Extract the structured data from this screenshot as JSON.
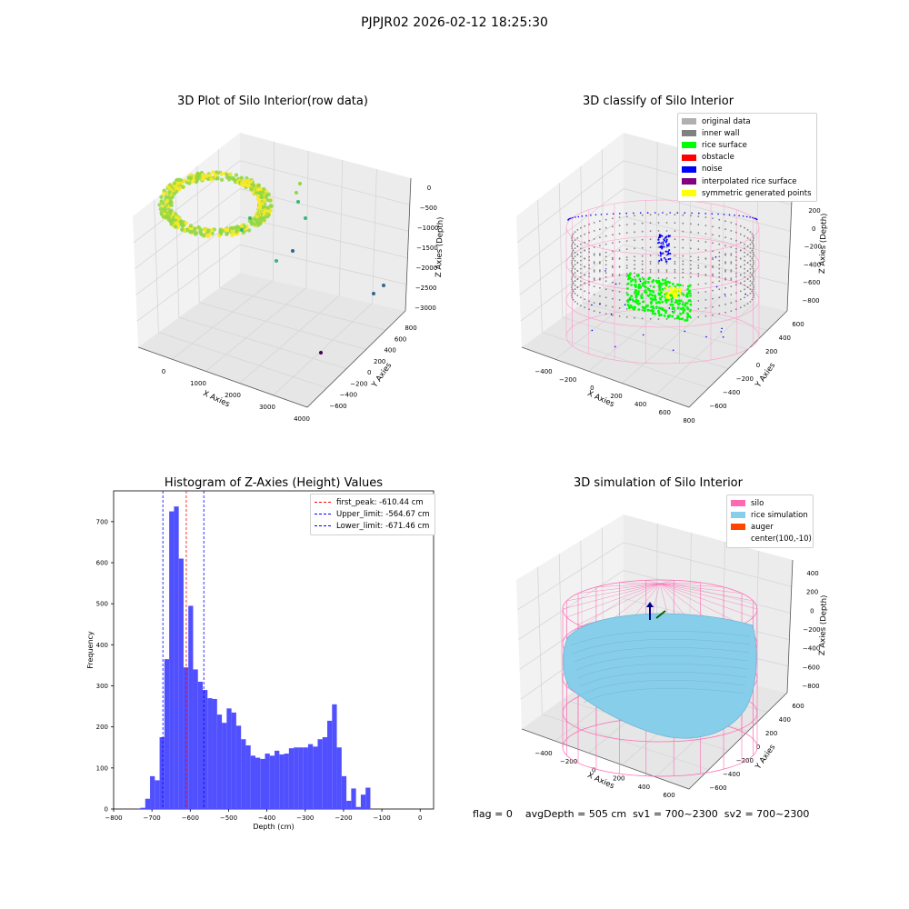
{
  "suptitle": "PJPJR02 2026-02-12 18:25:30",
  "footer": {
    "flag": "flag = 0",
    "avg_depth": "avgDepth = 505 cm",
    "sv1": "sv1 = 700~2300",
    "sv2": "sv2 = 700~2300"
  },
  "panels": {
    "raw": {
      "title": "3D Plot of Silo Interior(row data)",
      "xlabel": "X Axies",
      "ylabel": "Y Axies",
      "zlabel": "Z Axies (Depth)",
      "xticks": [
        "0",
        "1000",
        "2000",
        "3000",
        "4000"
      ],
      "yticks": [
        "800",
        "600",
        "400",
        "200",
        "0",
        "−200",
        "−400",
        "−600"
      ],
      "zticks": [
        "0",
        "−500",
        "−1000",
        "−1500",
        "−2000",
        "−2500",
        "−3000"
      ],
      "colormap": [
        "#440154",
        "#31688e",
        "#35b779",
        "#90d743",
        "#fde725"
      ]
    },
    "classify": {
      "title": "3D classify of Silo Interior",
      "xlabel": "X Axies",
      "ylabel": "Y Axies",
      "zlabel": "Z Axies (Depth)",
      "xticks": [
        "−400",
        "−200",
        "0",
        "200",
        "400",
        "600",
        "800"
      ],
      "yticks": [
        "600",
        "400",
        "200",
        "0",
        "−200",
        "−400",
        "−600"
      ],
      "zticks": [
        "200",
        "0",
        "−200",
        "−400",
        "−600",
        "−800"
      ],
      "legend": [
        {
          "label": "original data",
          "color": "#b0b0b0"
        },
        {
          "label": "inner wall",
          "color": "#808080"
        },
        {
          "label": "rice surface",
          "color": "#00ff00"
        },
        {
          "label": "obstacle",
          "color": "#ff0000"
        },
        {
          "label": "noise",
          "color": "#0000ff"
        },
        {
          "label": "interpolated rice surface",
          "color": "#800080"
        },
        {
          "label": "symmetric generated points",
          "color": "#ffff00"
        }
      ]
    },
    "histogram": {
      "title": "Histogram of Z-Axies (Height) Values",
      "xlabel": "Depth (cm)",
      "ylabel": "Frequency",
      "legend": [
        {
          "label": "first_peak: -610.44 cm",
          "color": "#ff0000"
        },
        {
          "label": "Upper_limit: -564.67 cm",
          "color": "#0000ff"
        },
        {
          "label": "Lower_limit: -671.46 cm",
          "color": "#0000ff"
        }
      ]
    },
    "simulation": {
      "title": "3D simulation of Silo Interior",
      "xlabel": "X Axies",
      "ylabel": "Y Axies",
      "zlabel": "Z Axies (Depth)",
      "xticks": [
        "−400",
        "−200",
        "0",
        "200",
        "400",
        "600"
      ],
      "yticks": [
        "600",
        "400",
        "200",
        "0",
        "−200",
        "−400",
        "−600"
      ],
      "zticks": [
        "400",
        "200",
        "0",
        "−200",
        "−400",
        "−600",
        "−800"
      ],
      "legend": [
        {
          "label": "silo",
          "color": "#ff69b4"
        },
        {
          "label": "rice simulation",
          "color": "#87ceeb"
        },
        {
          "label": "auger",
          "color": "#ff4500"
        },
        {
          "label": "center(100,-10)",
          "color": "#ffffff"
        }
      ]
    }
  },
  "chart_data": [
    {
      "type": "histogram",
      "title": "Histogram of Z-Axies (Height) Values",
      "xlabel": "Depth (cm)",
      "ylabel": "Frequency",
      "xlim": [
        -800,
        35
      ],
      "ylim": [
        0,
        775
      ],
      "xticks": [
        -800,
        -700,
        -600,
        -500,
        -400,
        -300,
        -200,
        -100,
        0
      ],
      "yticks": [
        0,
        100,
        200,
        300,
        400,
        500,
        600,
        700
      ],
      "bin_start": -730,
      "bin_width": 12.5,
      "bar_color": "#5050ff",
      "counts": [
        3,
        25,
        80,
        70,
        175,
        365,
        725,
        737,
        610,
        345,
        495,
        340,
        310,
        290,
        270,
        268,
        230,
        210,
        245,
        235,
        203,
        170,
        155,
        130,
        125,
        122,
        135,
        130,
        142,
        133,
        135,
        148,
        150,
        150,
        150,
        158,
        152,
        170,
        175,
        215,
        255,
        150,
        80,
        20,
        50,
        5,
        35,
        52
      ],
      "reference_lines": [
        {
          "name": "first_peak",
          "value": -610.44,
          "color": "#ff0000"
        },
        {
          "name": "Upper_limit",
          "value": -564.67,
          "color": "#0000ff"
        },
        {
          "name": "Lower_limit",
          "value": -671.46,
          "color": "#0000ff"
        }
      ],
      "legend_position": "upper right"
    }
  ]
}
